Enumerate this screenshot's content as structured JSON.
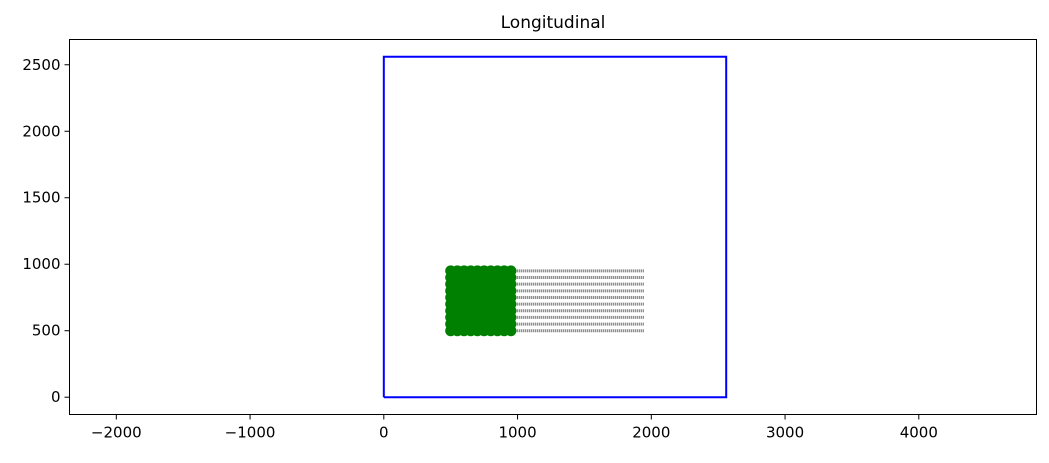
{
  "chart_data": {
    "type": "scatter",
    "title": "Longitudinal",
    "xlabel": "",
    "ylabel": "",
    "xlim": [
      -2350,
      4880
    ],
    "ylim": [
      -130,
      2690
    ],
    "xticks": [
      -2000,
      -1000,
      0,
      1000,
      2000,
      3000,
      4000
    ],
    "yticks": [
      0,
      500,
      1000,
      1500,
      2000,
      2500
    ],
    "xtick_labels": [
      "−2000",
      "−1000",
      "0",
      "1000",
      "2000",
      "3000",
      "4000"
    ],
    "ytick_labels": [
      "0",
      "500",
      "1000",
      "1500",
      "2000",
      "2500"
    ],
    "grid": false,
    "boundary": {
      "color": "#0000ff",
      "x": [
        0,
        2560,
        2560,
        0,
        0
      ],
      "y": [
        0,
        0,
        2560,
        2560,
        0
      ]
    },
    "points": {
      "color": "#008000",
      "x": [
        500,
        550,
        600,
        650,
        700,
        750,
        800,
        850,
        900,
        950
      ],
      "y": [
        500,
        550,
        600,
        650,
        700,
        750,
        800,
        850,
        900,
        950
      ]
    },
    "trails": {
      "color": "#808080",
      "x_end": 1950,
      "y": [
        500,
        550,
        600,
        650,
        700,
        750,
        800,
        850,
        900,
        950
      ]
    }
  }
}
